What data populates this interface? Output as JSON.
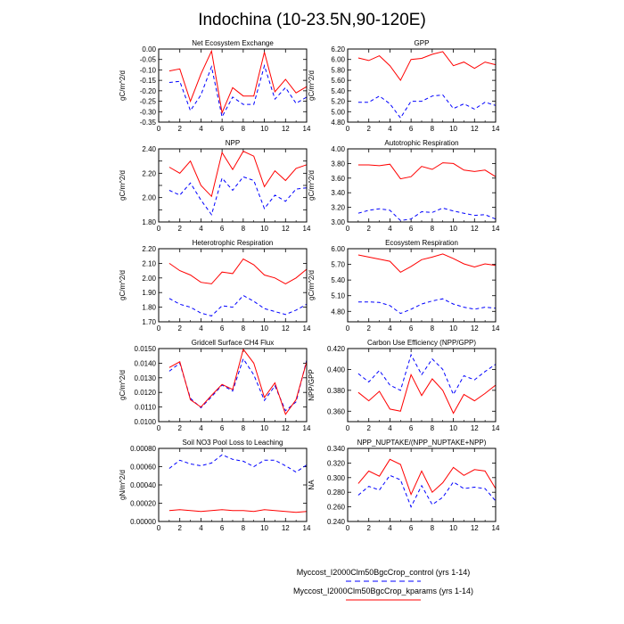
{
  "figure": {
    "title": "Indochina (10-23.5N,90-120E)",
    "series_styles": [
      {
        "name": "Myccost_I2000Clm50BgcCrop_control (yrs 1-14)",
        "color": "#0000ff",
        "dash": true
      },
      {
        "name": "Myccost_I2000Clm50BgcCrop_kparams (yrs 1-14)",
        "color": "#ff0000",
        "dash": false
      }
    ],
    "legend": {
      "control_label": "Myccost_I2000Clm50BgcCrop_control (yrs 1-14)",
      "kparams_label": "Myccost_I2000Clm50BgcCrop_kparams (yrs 1-14)"
    }
  },
  "chart_data": [
    {
      "type": "line",
      "title": "Net Ecosystem Exchange",
      "ylabel": "gC/m^2/d",
      "xlabel": "",
      "xlim": [
        0,
        14
      ],
      "x_ticks": [
        0,
        2,
        4,
        6,
        8,
        10,
        12,
        14
      ],
      "ylim": [
        -0.35,
        0.0
      ],
      "y_ticks": [
        -0.35,
        -0.3,
        -0.25,
        -0.2,
        -0.15,
        -0.1,
        -0.05,
        0.0
      ],
      "y_tick_labels": [
        "-0.35",
        "-0.30",
        "-0.25",
        "-0.20",
        "-0.15",
        "-0.10",
        "-0.05",
        "0.00"
      ],
      "x": [
        1,
        2,
        3,
        4,
        5,
        6,
        7,
        8,
        9,
        10,
        11,
        12,
        13,
        14
      ],
      "series": [
        {
          "name": "Myccost_I2000Clm50BgcCrop_control (yrs 1-14)",
          "values": [
            -0.16,
            -0.155,
            -0.295,
            -0.22,
            -0.085,
            -0.325,
            -0.23,
            -0.265,
            -0.265,
            -0.08,
            -0.24,
            -0.185,
            -0.26,
            -0.23
          ]
        },
        {
          "name": "Myccost_I2000Clm50BgcCrop_kparams (yrs 1-14)",
          "values": [
            -0.105,
            -0.095,
            -0.25,
            -0.12,
            -0.01,
            -0.305,
            -0.185,
            -0.225,
            -0.225,
            -0.015,
            -0.205,
            -0.145,
            -0.21,
            -0.18
          ]
        }
      ]
    },
    {
      "type": "line",
      "title": "GPP",
      "ylabel": "gC/m^2/d",
      "xlabel": "",
      "xlim": [
        0,
        14
      ],
      "x_ticks": [
        0,
        2,
        4,
        6,
        8,
        10,
        12,
        14
      ],
      "ylim": [
        4.8,
        6.2
      ],
      "y_ticks": [
        4.8,
        5.0,
        5.2,
        5.4,
        5.6,
        5.8,
        6.0,
        6.2
      ],
      "y_tick_labels": [
        "4.80",
        "5.00",
        "5.20",
        "5.40",
        "5.60",
        "5.80",
        "6.00",
        "6.20"
      ],
      "x": [
        1,
        2,
        3,
        4,
        5,
        6,
        7,
        8,
        9,
        10,
        11,
        12,
        13,
        14
      ],
      "series": [
        {
          "name": "Myccost_I2000Clm50BgcCrop_control (yrs 1-14)",
          "values": [
            5.18,
            5.18,
            5.3,
            5.15,
            4.88,
            5.2,
            5.2,
            5.3,
            5.32,
            5.06,
            5.15,
            5.05,
            5.18,
            5.12
          ]
        },
        {
          "name": "Myccost_I2000Clm50BgcCrop_kparams (yrs 1-14)",
          "values": [
            6.03,
            5.98,
            6.07,
            5.88,
            5.6,
            6.0,
            6.02,
            6.1,
            6.15,
            5.88,
            5.95,
            5.83,
            5.95,
            5.9
          ]
        }
      ]
    },
    {
      "type": "line",
      "title": "NPP",
      "ylabel": "gC/m^2/d",
      "xlabel": "",
      "xlim": [
        0,
        14
      ],
      "x_ticks": [
        0,
        2,
        4,
        6,
        8,
        10,
        12,
        14
      ],
      "ylim": [
        1.8,
        2.4
      ],
      "y_ticks": [
        1.8,
        1.9,
        2.0,
        2.1,
        2.2,
        2.3,
        2.4
      ],
      "y_tick_labels": [
        "1.80",
        "",
        "2.00",
        "",
        "2.20",
        "",
        "2.40"
      ],
      "x": [
        1,
        2,
        3,
        4,
        5,
        6,
        7,
        8,
        9,
        10,
        11,
        12,
        13,
        14
      ],
      "series": [
        {
          "name": "Myccost_I2000Clm50BgcCrop_control (yrs 1-14)",
          "values": [
            2.06,
            2.02,
            2.12,
            1.98,
            1.86,
            2.16,
            2.06,
            2.17,
            2.14,
            1.91,
            2.02,
            1.97,
            2.07,
            2.08
          ]
        },
        {
          "name": "Myccost_I2000Clm50BgcCrop_kparams (yrs 1-14)",
          "values": [
            2.25,
            2.2,
            2.3,
            2.1,
            2.01,
            2.37,
            2.23,
            2.38,
            2.34,
            2.09,
            2.22,
            2.14,
            2.24,
            2.27
          ]
        }
      ]
    },
    {
      "type": "line",
      "title": "Autotrophic Respiration",
      "ylabel": "gC/m^2/d",
      "xlabel": "",
      "xlim": [
        0,
        14
      ],
      "x_ticks": [
        0,
        2,
        4,
        6,
        8,
        10,
        12,
        14
      ],
      "ylim": [
        3.0,
        4.0
      ],
      "y_ticks": [
        3.0,
        3.2,
        3.4,
        3.6,
        3.8,
        4.0
      ],
      "y_tick_labels": [
        "3.00",
        "3.20",
        "3.40",
        "3.60",
        "3.80",
        "4.00"
      ],
      "x": [
        1,
        2,
        3,
        4,
        5,
        6,
        7,
        8,
        9,
        10,
        11,
        12,
        13,
        14
      ],
      "series": [
        {
          "name": "Myccost_I2000Clm50BgcCrop_control (yrs 1-14)",
          "values": [
            3.12,
            3.16,
            3.18,
            3.16,
            3.02,
            3.04,
            3.14,
            3.13,
            3.19,
            3.15,
            3.12,
            3.09,
            3.1,
            3.04
          ]
        },
        {
          "name": "Myccost_I2000Clm50BgcCrop_kparams (yrs 1-14)",
          "values": [
            3.78,
            3.78,
            3.77,
            3.79,
            3.59,
            3.62,
            3.76,
            3.72,
            3.81,
            3.8,
            3.71,
            3.69,
            3.71,
            3.62
          ]
        }
      ]
    },
    {
      "type": "line",
      "title": "Heterotrophic Respiration",
      "ylabel": "gC/m^2/d",
      "xlabel": "",
      "xlim": [
        0,
        14
      ],
      "x_ticks": [
        0,
        2,
        4,
        6,
        8,
        10,
        12,
        14
      ],
      "ylim": [
        1.7,
        2.2
      ],
      "y_ticks": [
        1.7,
        1.8,
        1.9,
        2.0,
        2.1,
        2.2
      ],
      "y_tick_labels": [
        "1.70",
        "1.80",
        "1.90",
        "2.00",
        "2.10",
        "2.20"
      ],
      "x": [
        1,
        2,
        3,
        4,
        5,
        6,
        7,
        8,
        9,
        10,
        11,
        12,
        13,
        14
      ],
      "series": [
        {
          "name": "Myccost_I2000Clm50BgcCrop_control (yrs 1-14)",
          "values": [
            1.86,
            1.82,
            1.8,
            1.76,
            1.74,
            1.81,
            1.8,
            1.88,
            1.84,
            1.79,
            1.77,
            1.75,
            1.78,
            1.82
          ]
        },
        {
          "name": "Myccost_I2000Clm50BgcCrop_kparams (yrs 1-14)",
          "values": [
            2.1,
            2.05,
            2.02,
            1.97,
            1.96,
            2.04,
            2.03,
            2.13,
            2.09,
            2.02,
            2.0,
            1.96,
            2.0,
            2.06
          ]
        }
      ]
    },
    {
      "type": "line",
      "title": "Ecosystem Respiration",
      "ylabel": "gC/m^2/d",
      "xlabel": "",
      "xlim": [
        0,
        14
      ],
      "x_ticks": [
        0,
        2,
        4,
        6,
        8,
        10,
        12,
        14
      ],
      "ylim": [
        4.6,
        6.0
      ],
      "y_ticks": [
        4.8,
        5.1,
        5.4,
        5.7,
        6.0
      ],
      "y_tick_labels": [
        "4.80",
        "5.10",
        "5.40",
        "5.70",
        "6.00"
      ],
      "x": [
        1,
        2,
        3,
        4,
        5,
        6,
        7,
        8,
        9,
        10,
        11,
        12,
        13,
        14
      ],
      "series": [
        {
          "name": "Myccost_I2000Clm50BgcCrop_control (yrs 1-14)",
          "values": [
            4.98,
            4.98,
            4.97,
            4.91,
            4.76,
            4.84,
            4.94,
            5.0,
            5.04,
            4.94,
            4.88,
            4.84,
            4.88,
            4.86
          ]
        },
        {
          "name": "Myccost_I2000Clm50BgcCrop_kparams (yrs 1-14)",
          "values": [
            5.88,
            5.84,
            5.8,
            5.76,
            5.55,
            5.66,
            5.79,
            5.84,
            5.9,
            5.81,
            5.71,
            5.65,
            5.71,
            5.68
          ]
        }
      ]
    },
    {
      "type": "line",
      "title": "Gridcell Surface CH4 Flux",
      "ylabel": "gC/m^2/d",
      "xlabel": "",
      "xlim": [
        0,
        14
      ],
      "x_ticks": [
        0,
        2,
        4,
        6,
        8,
        10,
        12,
        14
      ],
      "ylim": [
        0.01,
        0.015
      ],
      "y_ticks": [
        0.01,
        0.011,
        0.012,
        0.013,
        0.014,
        0.015
      ],
      "y_tick_labels": [
        "0.0100",
        "0.0110",
        "0.0120",
        "0.0130",
        "0.0140",
        "0.0150"
      ],
      "x": [
        1,
        2,
        3,
        4,
        5,
        6,
        7,
        8,
        9,
        10,
        11,
        12,
        13,
        14
      ],
      "series": [
        {
          "name": "Myccost_I2000Clm50BgcCrop_control (yrs 1-14)",
          "values": [
            0.01345,
            0.014,
            0.0116,
            0.01095,
            0.0117,
            0.0125,
            0.0121,
            0.0143,
            0.0132,
            0.01145,
            0.01245,
            0.01075,
            0.01135,
            0.0142
          ]
        },
        {
          "name": "Myccost_I2000Clm50BgcCrop_kparams (yrs 1-14)",
          "values": [
            0.0137,
            0.0141,
            0.0115,
            0.011,
            0.0118,
            0.01255,
            0.0122,
            0.01495,
            0.014,
            0.01165,
            0.01265,
            0.0105,
            0.0115,
            0.0141
          ]
        }
      ]
    },
    {
      "type": "line",
      "title": "Carbon Use Efficiency (NPP/GPP)",
      "ylabel": "NPP/GPP",
      "xlabel": "",
      "xlim": [
        0,
        14
      ],
      "x_ticks": [
        0,
        2,
        4,
        6,
        8,
        10,
        12,
        14
      ],
      "ylim": [
        0.35,
        0.42
      ],
      "y_ticks": [
        0.36,
        0.38,
        0.4,
        0.42
      ],
      "y_tick_labels": [
        "0.360",
        "0.380",
        "0.400",
        "0.420"
      ],
      "x": [
        1,
        2,
        3,
        4,
        5,
        6,
        7,
        8,
        9,
        10,
        11,
        12,
        13,
        14
      ],
      "series": [
        {
          "name": "Myccost_I2000Clm50BgcCrop_control (yrs 1-14)",
          "values": [
            0.396,
            0.388,
            0.399,
            0.385,
            0.38,
            0.414,
            0.395,
            0.41,
            0.4,
            0.376,
            0.394,
            0.39,
            0.398,
            0.405
          ]
        },
        {
          "name": "Myccost_I2000Clm50BgcCrop_kparams (yrs 1-14)",
          "values": [
            0.378,
            0.37,
            0.379,
            0.362,
            0.36,
            0.395,
            0.375,
            0.391,
            0.38,
            0.358,
            0.376,
            0.37,
            0.377,
            0.385
          ]
        }
      ]
    },
    {
      "type": "line",
      "title": "Soil NO3 Pool Loss to Leaching",
      "ylabel": "gN/m^2/d",
      "xlabel": "",
      "xlim": [
        0,
        14
      ],
      "x_ticks": [
        0,
        2,
        4,
        6,
        8,
        10,
        12,
        14
      ],
      "ylim": [
        0.0,
        0.0008
      ],
      "y_ticks": [
        0.0,
        0.0002,
        0.0004,
        0.0006,
        0.0008
      ],
      "y_tick_labels": [
        "0.00000",
        "0.00020",
        "0.00040",
        "0.00060",
        "0.00080"
      ],
      "x": [
        1,
        2,
        3,
        4,
        5,
        6,
        7,
        8,
        9,
        10,
        11,
        12,
        13,
        14
      ],
      "series": [
        {
          "name": "Myccost_I2000Clm50BgcCrop_control (yrs 1-14)",
          "values": [
            0.00058,
            0.00067,
            0.00063,
            0.00061,
            0.00064,
            0.00073,
            0.00068,
            0.00066,
            0.0006,
            0.00067,
            0.00067,
            0.00061,
            0.00054,
            0.00062
          ]
        },
        {
          "name": "Myccost_I2000Clm50BgcCrop_kparams (yrs 1-14)",
          "values": [
            0.00012,
            0.00013,
            0.00012,
            0.00011,
            0.00012,
            0.00013,
            0.00012,
            0.00012,
            0.00011,
            0.00013,
            0.00012,
            0.00011,
            0.0001,
            0.00011
          ]
        }
      ]
    },
    {
      "type": "line",
      "title": "NPP_NUPTAKE/(NPP_NUPTAKE+NPP)",
      "ylabel": "NA",
      "xlabel": "",
      "xlim": [
        0,
        14
      ],
      "x_ticks": [
        0,
        2,
        4,
        6,
        8,
        10,
        12,
        14
      ],
      "ylim": [
        0.24,
        0.34
      ],
      "y_ticks": [
        0.24,
        0.26,
        0.28,
        0.3,
        0.32,
        0.34
      ],
      "y_tick_labels": [
        "0.240",
        "0.260",
        "0.280",
        "0.300",
        "0.320",
        "0.340"
      ],
      "x": [
        1,
        2,
        3,
        4,
        5,
        6,
        7,
        8,
        9,
        10,
        11,
        12,
        13,
        14
      ],
      "series": [
        {
          "name": "Myccost_I2000Clm50BgcCrop_control (yrs 1-14)",
          "values": [
            0.276,
            0.288,
            0.283,
            0.303,
            0.297,
            0.26,
            0.289,
            0.263,
            0.273,
            0.294,
            0.285,
            0.287,
            0.285,
            0.268
          ]
        },
        {
          "name": "Myccost_I2000Clm50BgcCrop_kparams (yrs 1-14)",
          "values": [
            0.292,
            0.309,
            0.302,
            0.325,
            0.318,
            0.277,
            0.309,
            0.28,
            0.293,
            0.314,
            0.303,
            0.311,
            0.309,
            0.285
          ]
        }
      ]
    }
  ]
}
